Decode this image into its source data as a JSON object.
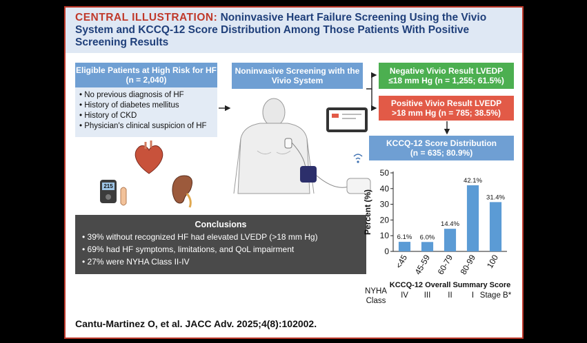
{
  "title": {
    "lead": "CENTRAL ILLUSTRATION:",
    "text": "Noninvasive Heart Failure Screening Using the Vivio System and KCCQ-12 Score Distribution Among Those Patients With Positive Screening Results"
  },
  "eligible": {
    "heading": "Eligible Patients at High Risk for HF",
    "count": "(n = 2,040)",
    "criteria": [
      "• No previous diagnosis of HF",
      "• History of diabetes mellitus",
      "• History of CKD",
      "• Physician's clinical suspicion of HF"
    ]
  },
  "screening": {
    "heading": "Noninvasive Screening with the Vivio System"
  },
  "negative": {
    "line1": "Negative Vivio Result LVEDP",
    "line2": "≤18 mm Hg (n = 1,255; 61.5%)"
  },
  "positive": {
    "line1": "Positive Vivio Result LVEDP",
    "line2": ">18 mm Hg (n = 785; 38.5%)"
  },
  "kccq": {
    "line1": "KCCQ-12 Score Distribution",
    "line2": "(n = 635; 80.9%)"
  },
  "device": {
    "screen_value": "215"
  },
  "conclusions": {
    "heading": "Conclusions",
    "items": [
      "• 39% without recognized HF had elevated LVEDP (>18 mm Hg)",
      "• 69% had HF symptoms, limitations, and QoL impairment",
      "• 27% were NYHA Class II-IV"
    ]
  },
  "chart_data": {
    "type": "bar",
    "categories": [
      "<45",
      "45-59",
      "60-79",
      "80-99",
      "100"
    ],
    "values": [
      6.1,
      6.0,
      14.4,
      42.1,
      31.4
    ],
    "data_labels": [
      "6.1%",
      "6.0%",
      "14.4%",
      "42.1%",
      "31.4%"
    ],
    "ylabel": "Percent (%)",
    "xlabel": "KCCQ-12 Overall Summary Score",
    "ylim": [
      0,
      50
    ],
    "yticks": [
      0,
      10,
      20,
      30,
      40,
      50
    ],
    "bar_color": "#5b9bd5",
    "grid": false
  },
  "nyha": {
    "label_line1": "NYHA",
    "label_line2": "Class",
    "classes": [
      "IV",
      "III",
      "II",
      "I",
      "Stage B*"
    ]
  },
  "citation": "Cantu-Martinez O, et al. JACC Adv. 2025;4(8):102002."
}
